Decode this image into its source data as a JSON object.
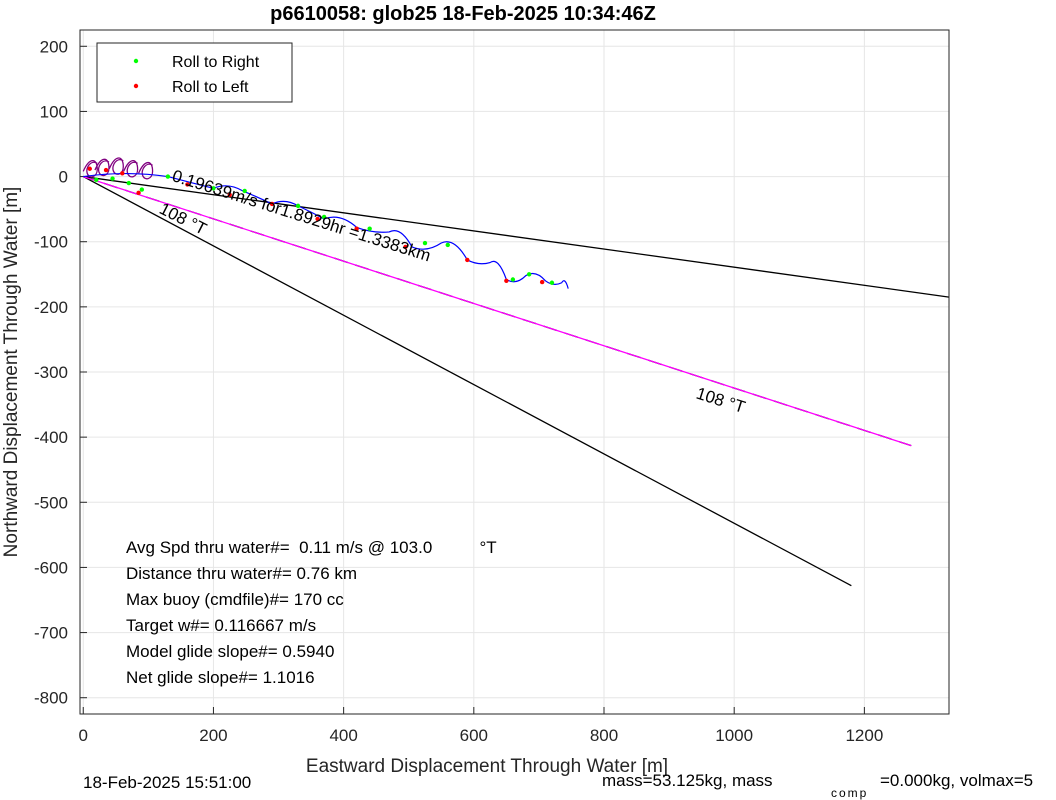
{
  "chart_data": {
    "type": "line",
    "title": "p6610058: glob25 18-Feb-2025 10:34:46Z",
    "xlabel": "Eastward Displacement Through Water [m]",
    "ylabel": "Northward Displacement Through Water [m]",
    "xlim": [
      -5,
      1330
    ],
    "ylim": [
      -825,
      225
    ],
    "xticks": [
      0,
      200,
      400,
      600,
      800,
      1000,
      1200
    ],
    "yticks": [
      200,
      100,
      0,
      -100,
      -200,
      -300,
      -400,
      -500,
      -600,
      -700,
      -800
    ],
    "grid": true,
    "legend": {
      "placement": "top-left",
      "entries": [
        {
          "label": "Roll to Right",
          "color": "#00ff00"
        },
        {
          "label": "Roll to Left",
          "color": "#ff0000"
        }
      ]
    },
    "lines": [
      {
        "x": [
          0,
          1330
        ],
        "y": [
          0,
          -185
        ],
        "color": "#000000",
        "style": "solid"
      },
      {
        "x": [
          0,
          1180
        ],
        "y": [
          0,
          -628
        ],
        "color": "#000000",
        "style": "solid"
      },
      {
        "x": [
          0,
          1272
        ],
        "y": [
          0,
          -413
        ],
        "color": "#000000",
        "style": "dashed"
      },
      {
        "x": [
          0,
          1272
        ],
        "y": [
          0,
          -413
        ],
        "color": "#ff00ff",
        "style": "solid"
      }
    ],
    "track": {
      "color": "#0000ff",
      "x": [
        0,
        130,
        200,
        245,
        290,
        330,
        370,
        420,
        470,
        505,
        550,
        590,
        625,
        650,
        680,
        710,
        735,
        745
      ],
      "y": [
        0,
        0,
        -18,
        -22,
        -42,
        -45,
        -65,
        -78,
        -85,
        -108,
        -102,
        -128,
        -132,
        -158,
        -152,
        -160,
        -163,
        -172
      ]
    },
    "roll_right_points": [
      {
        "x": 20,
        "y": -5
      },
      {
        "x": 45,
        "y": -3
      },
      {
        "x": 70,
        "y": -10
      },
      {
        "x": 90,
        "y": -20
      },
      {
        "x": 130,
        "y": 0
      },
      {
        "x": 200,
        "y": -18
      },
      {
        "x": 248,
        "y": -22
      },
      {
        "x": 330,
        "y": -45
      },
      {
        "x": 370,
        "y": -62
      },
      {
        "x": 440,
        "y": -80
      },
      {
        "x": 525,
        "y": -102
      },
      {
        "x": 560,
        "y": -105
      },
      {
        "x": 660,
        "y": -158
      },
      {
        "x": 685,
        "y": -150
      },
      {
        "x": 720,
        "y": -163
      }
    ],
    "roll_left_points": [
      {
        "x": 10,
        "y": 12
      },
      {
        "x": 35,
        "y": 10
      },
      {
        "x": 60,
        "y": 5
      },
      {
        "x": 85,
        "y": -25
      },
      {
        "x": 160,
        "y": -12
      },
      {
        "x": 225,
        "y": -28
      },
      {
        "x": 290,
        "y": -42
      },
      {
        "x": 360,
        "y": -65
      },
      {
        "x": 420,
        "y": -80
      },
      {
        "x": 495,
        "y": -108
      },
      {
        "x": 590,
        "y": -128
      },
      {
        "x": 650,
        "y": -160
      },
      {
        "x": 705,
        "y": -162
      }
    ],
    "annotations": [
      {
        "text": "0.19639m/s for1.8929hr =1.3383km",
        "x": 135,
        "y": -6,
        "angle_deg": 17.5
      },
      {
        "text": "108 °T",
        "x": 115,
        "y": -55,
        "angle_deg": 27
      },
      {
        "text": "108 °T",
        "x": 940,
        "y": -340,
        "angle_deg": 17.5
      }
    ],
    "stats": [
      "Avg Spd thru water#=  0.11 m/s @ 103.0          °T",
      "Distance thru water#=  0.76 km",
      "Max buoy (cmdfile)#= 170 cc",
      "Target w#= 0.116667 m/s",
      "Model glide slope#= 0.5940",
      "Net glide slope#= 1.1016"
    ]
  },
  "footer": {
    "date": "18-Feb-2025 15:51:00",
    "mass_a": "mass=53.125kg, mass",
    "mass_sub": "comp",
    "mass_b": "=0.000kg, volmax=5"
  }
}
